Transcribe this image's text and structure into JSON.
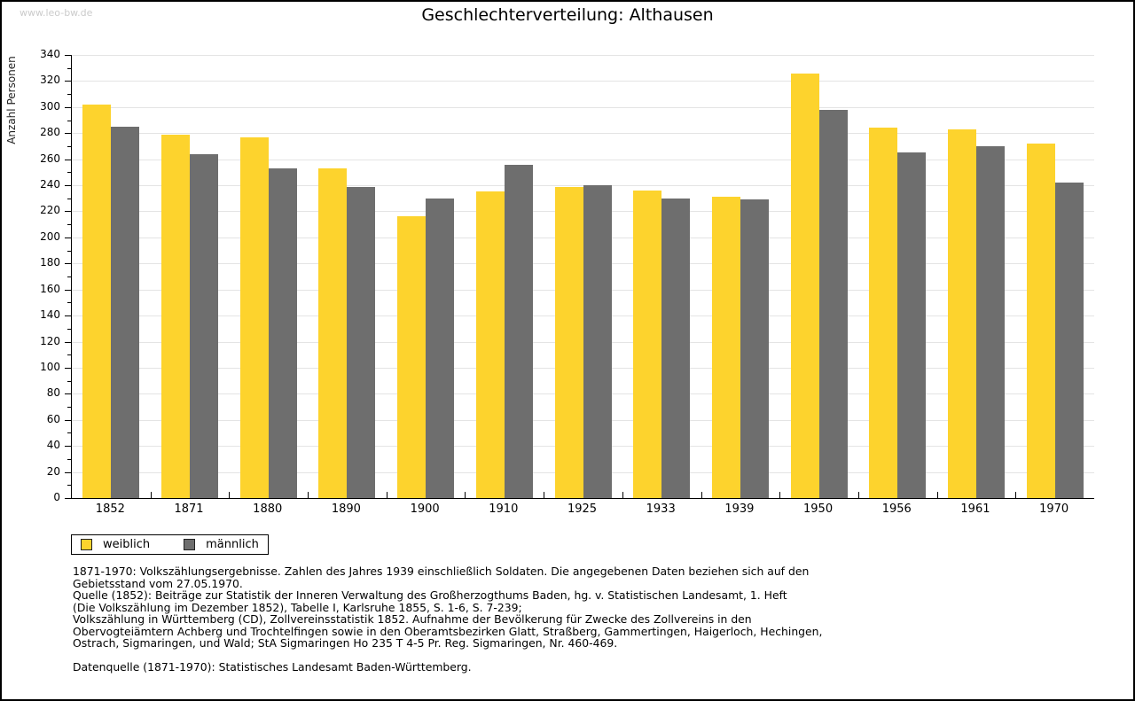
{
  "watermark": "www.leo-bw.de",
  "title": "Geschlechterverteilung: Althausen",
  "chart_data": {
    "type": "bar",
    "title": "Geschlechterverteilung: Althausen",
    "xlabel": "",
    "ylabel": "Anzahl Personen",
    "ylim": [
      0,
      340
    ],
    "ytick_step": 20,
    "yminor_step": 10,
    "grid": true,
    "legend_position": "bottom-left",
    "categories": [
      "1852",
      "1871",
      "1880",
      "1890",
      "1900",
      "1910",
      "1925",
      "1933",
      "1939",
      "1950",
      "1956",
      "1961",
      "1970"
    ],
    "series": [
      {
        "name": "weiblich",
        "color": "#fdd32d",
        "values": [
          302,
          279,
          277,
          253,
          216,
          235,
          239,
          236,
          231,
          326,
          284,
          283,
          272
        ]
      },
      {
        "name": "männlich",
        "color": "#6e6e6e",
        "values": [
          285,
          264,
          253,
          239,
          230,
          256,
          240,
          230,
          229,
          298,
          265,
          270,
          242
        ]
      }
    ]
  },
  "footnotes": {
    "lines": [
      "1871-1970: Volkszählungsergebnisse. Zahlen des Jahres 1939 einschließlich Soldaten. Die angegebenen Daten beziehen sich auf den",
      "Gebietsstand vom 27.05.1970.",
      "Quelle (1852): Beiträge zur Statistik der Inneren Verwaltung des Großherzogthums Baden, hg. v. Statistischen Landesamt, 1. Heft",
      "(Die Volkszählung im Dezember 1852), Tabelle I, Karlsruhe 1855, S. 1-6, S. 7-239;",
      "Volkszählung in Württemberg (CD), Zollvereinsstatistik 1852. Aufnahme der Bevölkerung für Zwecke des Zollvereins in den",
      "Obervogteiämtern Achberg und Trochtelfingen sowie in den Oberamtsbezirken Glatt, Straßberg, Gammertingen, Haigerloch, Hechingen,",
      "Ostrach, Sigmaringen, und Wald; StA Sigmaringen Ho 235 T 4-5 Pr. Reg. Sigmaringen, Nr. 460-469.",
      "",
      "Datenquelle (1871-1970): Statistisches Landesamt Baden-Württemberg."
    ]
  },
  "colors": {
    "weiblich": "#fdd32d",
    "maennlich": "#6e6e6e",
    "gridline": "#e4e4e4",
    "axis": "#000000",
    "watermark": "#cbcbcb",
    "background": "#ffffff"
  }
}
